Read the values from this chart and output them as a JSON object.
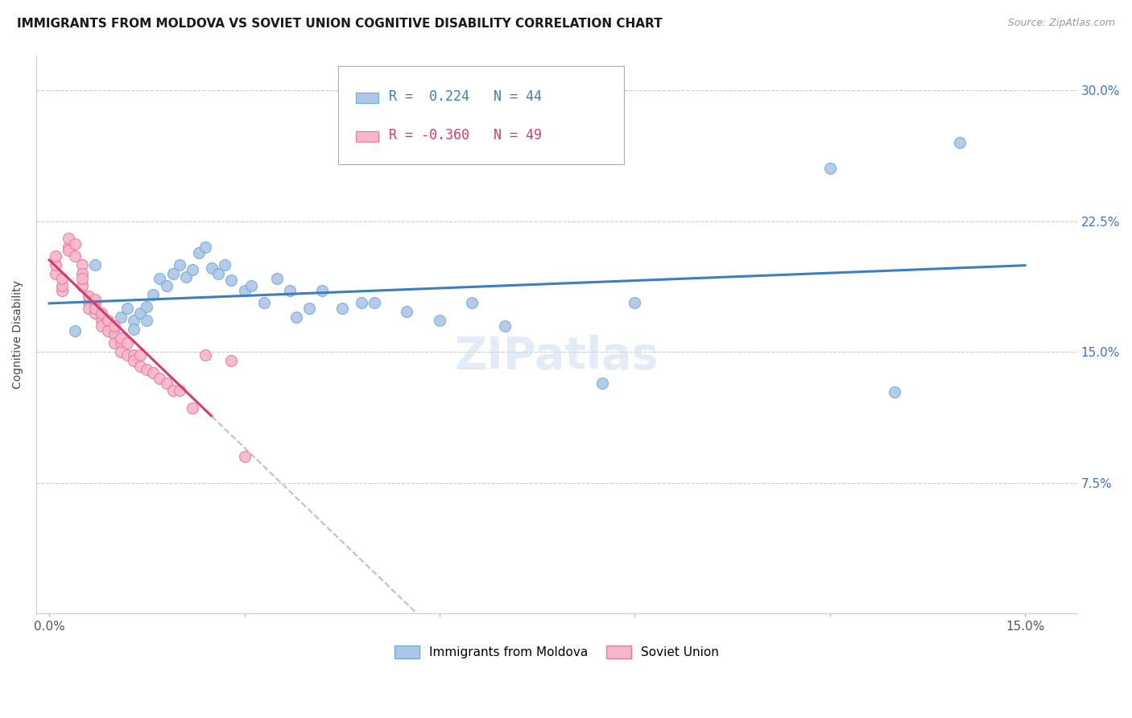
{
  "title": "IMMIGRANTS FROM MOLDOVA VS SOVIET UNION COGNITIVE DISABILITY CORRELATION CHART",
  "source": "Source: ZipAtlas.com",
  "ylabel": "Cognitive Disability",
  "watermark": "ZIPatlas",
  "x_ticks": [
    0.0,
    0.03,
    0.06,
    0.09,
    0.12,
    0.15
  ],
  "x_tick_labels": [
    "0.0%",
    "",
    "",
    "",
    "",
    "15.0%"
  ],
  "y_ticks": [
    0.0,
    0.075,
    0.15,
    0.225,
    0.3
  ],
  "y_tick_labels_right": [
    "",
    "7.5%",
    "15.0%",
    "22.5%",
    "30.0%"
  ],
  "xlim": [
    -0.002,
    0.158
  ],
  "ylim": [
    0.0,
    0.32
  ],
  "moldova_color": "#aec6e8",
  "moldova_edge_color": "#6baed6",
  "soviet_color": "#f7b6c9",
  "soviet_edge_color": "#e8799a",
  "trend_moldova_color": "#3a7fc1",
  "trend_soviet_color": "#d63b6b",
  "trend_soviet_dashed_color": "#c0c0c0",
  "legend_R_moldova": "R =  0.224",
  "legend_N_moldova": "N = 44",
  "legend_R_soviet": "R = -0.360",
  "legend_N_soviet": "N = 49",
  "moldova_x": [
    0.004,
    0.007,
    0.009,
    0.01,
    0.011,
    0.012,
    0.013,
    0.013,
    0.014,
    0.015,
    0.015,
    0.016,
    0.017,
    0.018,
    0.019,
    0.02,
    0.021,
    0.022,
    0.023,
    0.024,
    0.025,
    0.026,
    0.027,
    0.028,
    0.03,
    0.031,
    0.033,
    0.035,
    0.037,
    0.038,
    0.04,
    0.042,
    0.045,
    0.048,
    0.05,
    0.055,
    0.06,
    0.065,
    0.07,
    0.085,
    0.09,
    0.12,
    0.13,
    0.14
  ],
  "moldova_y": [
    0.162,
    0.2,
    0.165,
    0.16,
    0.17,
    0.175,
    0.168,
    0.163,
    0.172,
    0.176,
    0.168,
    0.183,
    0.192,
    0.188,
    0.195,
    0.2,
    0.193,
    0.197,
    0.207,
    0.21,
    0.198,
    0.195,
    0.2,
    0.191,
    0.185,
    0.188,
    0.178,
    0.192,
    0.185,
    0.17,
    0.175,
    0.185,
    0.175,
    0.178,
    0.178,
    0.173,
    0.168,
    0.178,
    0.165,
    0.132,
    0.178,
    0.255,
    0.127,
    0.27
  ],
  "soviet_x": [
    0.001,
    0.001,
    0.001,
    0.002,
    0.002,
    0.002,
    0.003,
    0.003,
    0.003,
    0.004,
    0.004,
    0.005,
    0.005,
    0.005,
    0.005,
    0.006,
    0.006,
    0.006,
    0.007,
    0.007,
    0.007,
    0.007,
    0.008,
    0.008,
    0.008,
    0.009,
    0.009,
    0.01,
    0.01,
    0.01,
    0.011,
    0.011,
    0.011,
    0.012,
    0.012,
    0.013,
    0.013,
    0.014,
    0.014,
    0.015,
    0.016,
    0.017,
    0.018,
    0.019,
    0.02,
    0.022,
    0.024,
    0.028,
    0.03
  ],
  "soviet_y": [
    0.195,
    0.2,
    0.205,
    0.185,
    0.188,
    0.192,
    0.21,
    0.215,
    0.208,
    0.205,
    0.212,
    0.2,
    0.195,
    0.188,
    0.192,
    0.178,
    0.182,
    0.175,
    0.178,
    0.172,
    0.18,
    0.175,
    0.168,
    0.165,
    0.172,
    0.168,
    0.162,
    0.16,
    0.155,
    0.165,
    0.155,
    0.15,
    0.158,
    0.148,
    0.155,
    0.148,
    0.145,
    0.142,
    0.148,
    0.14,
    0.138,
    0.135,
    0.132,
    0.128,
    0.128,
    0.118,
    0.148,
    0.145,
    0.09
  ],
  "title_fontsize": 11,
  "source_fontsize": 9,
  "axis_label_fontsize": 10,
  "tick_fontsize": 11,
  "legend_fontsize": 12,
  "watermark_fontsize": 40,
  "marker_size": 100
}
